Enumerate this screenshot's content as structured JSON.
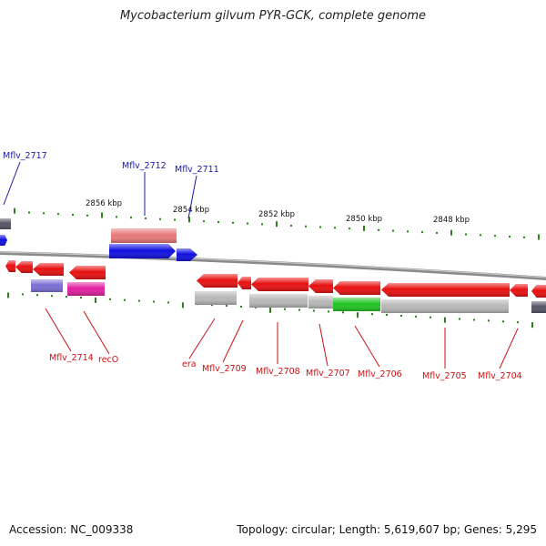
{
  "title": "Mycobacterium gilvum PYR-GCK, complete genome",
  "footer": {
    "accession": "Accession: NC_009338",
    "summary": "Topology: circular; Length: 5,619,607 bp; Genes: 5,295"
  },
  "colors": {
    "backbone": "#8a8a8a",
    "tick": "#2e7d1e",
    "label_top": "#1a1aa8",
    "label_bottom": "#cc1111",
    "gene_red": "#e81010",
    "gene_blue": "#1010e0",
    "gene_salmon": "#e87878",
    "gene_purple": "#7a6fd6",
    "gene_magenta": "#e020a0",
    "gene_gray": "#b8b8b8",
    "gene_green": "#22c522",
    "gene_dark": "#555566"
  },
  "scale_ticks": [
    {
      "label": "2856 kbp"
    },
    {
      "label": "2854 kbp"
    },
    {
      "label": "2852 kbp"
    },
    {
      "label": "2850 kbp"
    },
    {
      "label": "2848 kbp"
    }
  ],
  "gene_labels": {
    "top": [
      "Mflv_2717",
      "Mflv_2712",
      "Mflv_2711"
    ],
    "bottom": [
      "Mflv_2714",
      "recO",
      "era",
      "Mflv_2709",
      "Mflv_2708",
      "Mflv_2707",
      "Mflv_2706",
      "Mflv_2705",
      "Mflv_2704"
    ]
  }
}
